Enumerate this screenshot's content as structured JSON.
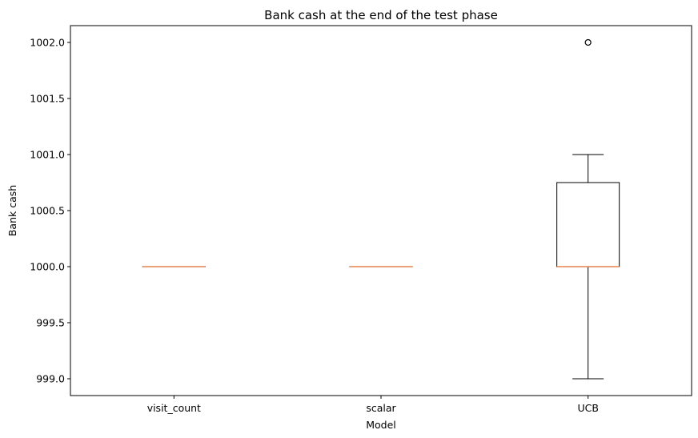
{
  "chart_data": {
    "type": "box",
    "title": "Bank cash at the end of the test phase",
    "xlabel": "Model",
    "ylabel": "Bank cash",
    "categories": [
      "visit_count",
      "scalar",
      "UCB"
    ],
    "ylim": [
      998.85,
      1002.15
    ],
    "yticks": [
      999.0,
      999.5,
      1000.0,
      1000.5,
      1001.0,
      1001.5,
      1002.0
    ],
    "ytick_labels": [
      "999.0",
      "999.5",
      "1000.0",
      "1000.5",
      "1001.0",
      "1001.5",
      "1002.0"
    ],
    "grid": false,
    "boxes": [
      {
        "category": "visit_count",
        "whisker_low": 1000.0,
        "q1": 1000.0,
        "median": 1000.0,
        "q3": 1000.0,
        "whisker_high": 1000.0,
        "outliers": []
      },
      {
        "category": "scalar",
        "whisker_low": 1000.0,
        "q1": 1000.0,
        "median": 1000.0,
        "q3": 1000.0,
        "whisker_high": 1000.0,
        "outliers": []
      },
      {
        "category": "UCB",
        "whisker_low": 999.0,
        "q1": 1000.0,
        "median": 1000.0,
        "q3": 1000.75,
        "whisker_high": 1001.0,
        "outliers": [
          1002.0
        ]
      }
    ],
    "colors": {
      "box": "#000000",
      "median": "#e8844a",
      "outlier": "#000000"
    }
  }
}
